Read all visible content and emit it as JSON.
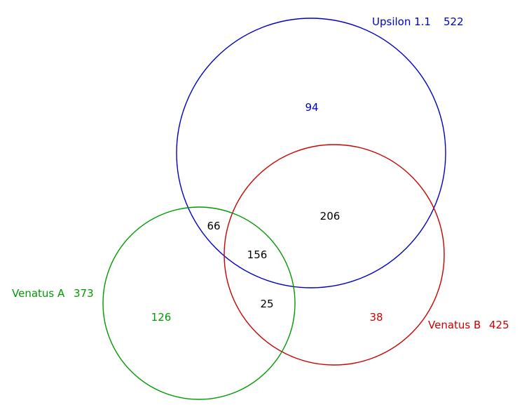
{
  "sets": {
    "upsilon": {
      "name": "Upsilon 1.1",
      "total": "522",
      "color": "#0000cc"
    },
    "venatus_a": {
      "name": "Venatus A",
      "total": "373",
      "color": "#009900"
    },
    "venatus_b": {
      "name": "Venatus B",
      "total": "425",
      "color": "#cc0000"
    }
  },
  "regions": {
    "upsilon_only": "94",
    "venatus_a_only": "126",
    "venatus_b_only": "38",
    "upsilon_and_venatus_a": "66",
    "upsilon_and_venatus_b": "206",
    "venatus_a_and_venatus_b": "25",
    "all_three": "156"
  }
}
